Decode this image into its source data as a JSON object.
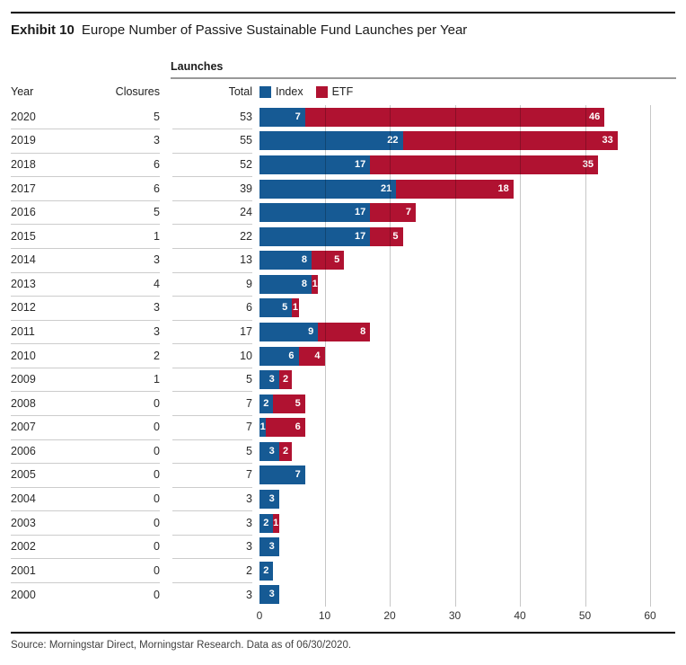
{
  "header": {
    "exhibit_label": "Exhibit 10",
    "title": "Europe Number of Passive Sustainable Fund Launches per Year"
  },
  "table_headers": {
    "year": "Year",
    "closures": "Closures",
    "total": "Total"
  },
  "chart_data": {
    "type": "bar",
    "orientation": "horizontal",
    "stacked": true,
    "group_label": "Launches",
    "categories": [
      "2020",
      "2019",
      "2018",
      "2017",
      "2016",
      "2015",
      "2014",
      "2013",
      "2012",
      "2011",
      "2010",
      "2009",
      "2008",
      "2007",
      "2006",
      "2005",
      "2004",
      "2003",
      "2002",
      "2001",
      "2000"
    ],
    "closures": [
      5,
      3,
      6,
      6,
      5,
      1,
      3,
      4,
      3,
      3,
      2,
      1,
      0,
      0,
      0,
      0,
      0,
      0,
      0,
      0,
      0
    ],
    "totals": [
      53,
      55,
      52,
      39,
      24,
      22,
      13,
      9,
      6,
      17,
      10,
      5,
      7,
      7,
      5,
      7,
      3,
      3,
      3,
      2,
      3
    ],
    "series": [
      {
        "name": "Index",
        "color": "#165a94",
        "values": [
          7,
          22,
          17,
          21,
          17,
          17,
          8,
          8,
          5,
          9,
          6,
          3,
          2,
          1,
          3,
          7,
          3,
          2,
          3,
          2,
          3
        ]
      },
      {
        "name": "ETF",
        "color": "#b01231",
        "values": [
          46,
          33,
          35,
          18,
          7,
          5,
          5,
          1,
          1,
          8,
          4,
          2,
          5,
          6,
          2,
          0,
          0,
          1,
          0,
          0,
          0
        ]
      }
    ],
    "xticks": [
      0,
      10,
      20,
      30,
      40,
      50,
      60
    ],
    "xlim": [
      0,
      64
    ],
    "grid": "vertical",
    "legend_position": "top",
    "value_labels": "inside-end, white bold"
  },
  "colors": {
    "index_blue": "#165a94",
    "etf_red": "#b01231",
    "row_divider": "#cccccc",
    "section_rule": "#999999",
    "frame_rule": "#000000"
  },
  "footer": {
    "source": "Source: Morningstar Direct, Morningstar Research. Data as of 06/30/2020."
  }
}
